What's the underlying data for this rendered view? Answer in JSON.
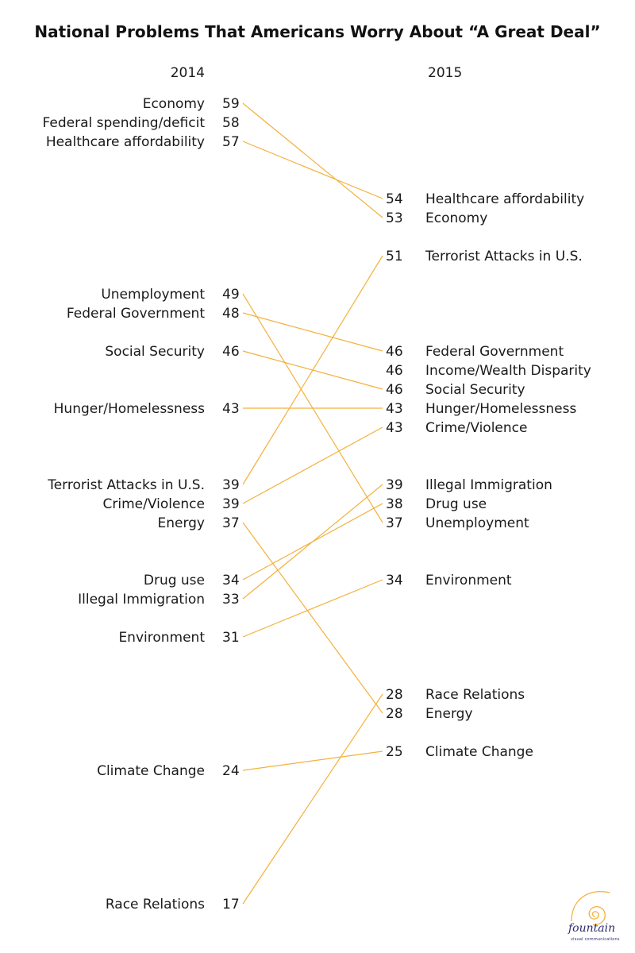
{
  "chart_data": {
    "type": "slope",
    "title": "National Problems That Americans Worry About “A Great Deal”",
    "left_year": "2014",
    "right_year": "2015",
    "items": [
      {
        "name": "Economy",
        "left_label": "Economy",
        "right_label": "Economy",
        "v2014": 59,
        "v2015": 53
      },
      {
        "name": "Federal spending/deficit",
        "left_label": "Federal spending/deficit",
        "right_label": null,
        "v2014": 58,
        "v2015": null
      },
      {
        "name": "Healthcare affordability",
        "left_label": "Healthcare affordability",
        "right_label": "Healthcare affordability",
        "v2014": 57,
        "v2015": 54
      },
      {
        "name": "Terrorist Attacks in U.S.",
        "left_label": "Terrorist Attacks in U.S.",
        "right_label": "Terrorist Attacks in U.S.",
        "v2014": 39,
        "v2015": 51
      },
      {
        "name": "Unemployment",
        "left_label": "Unemployment",
        "right_label": "Unemployment",
        "v2014": 49,
        "v2015": 37
      },
      {
        "name": "Federal Government",
        "left_label": "Federal Government",
        "right_label": "Federal Government",
        "v2014": 48,
        "v2015": 46
      },
      {
        "name": "Income/Wealth Disparity",
        "left_label": null,
        "right_label": "Income/Wealth Disparity",
        "v2014": null,
        "v2015": 46
      },
      {
        "name": "Social Security",
        "left_label": "Social Security",
        "right_label": "Social Security",
        "v2014": 46,
        "v2015": 46
      },
      {
        "name": "Hunger/Homelessness",
        "left_label": "Hunger/Homelessness",
        "right_label": "Hunger/Homelessness",
        "v2014": 43,
        "v2015": 43
      },
      {
        "name": "Crime/Violence",
        "left_label": "Crime/Violence",
        "right_label": "Crime/Violence",
        "v2014": 39,
        "v2015": 43
      },
      {
        "name": "Illegal Immigration",
        "left_label": "Illegal Immigration",
        "right_label": "Illegal Immigration",
        "v2014": 33,
        "v2015": 39
      },
      {
        "name": "Drug use",
        "left_label": "Drug use",
        "right_label": "Drug use",
        "v2014": 34,
        "v2015": 38
      },
      {
        "name": "Energy",
        "left_label": "Energy",
        "right_label": "Energy",
        "v2014": 37,
        "v2015": 28
      },
      {
        "name": "Environment",
        "left_label": "Environment",
        "right_label": "Environment",
        "v2014": 31,
        "v2015": 34
      },
      {
        "name": "Race Relations",
        "left_label": "Race Relations",
        "right_label": "Race Relations",
        "v2014": 17,
        "v2015": 28
      },
      {
        "name": "Climate Change",
        "left_label": "Climate Change",
        "right_label": "Climate Change",
        "v2014": 24,
        "v2015": 25
      }
    ],
    "line_color": "#f3b13d"
  },
  "logo": {
    "name": "fountain",
    "tagline": "visual communications",
    "color": "#2c2a6e",
    "accent": "#f3b13d"
  }
}
